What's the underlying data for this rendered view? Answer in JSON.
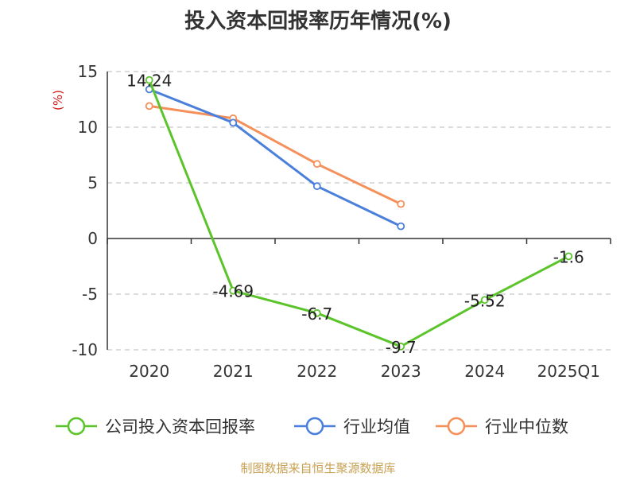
{
  "chart_data": {
    "type": "line",
    "title": "投入资本回报率历年情况(%)",
    "ylabel": "(%)",
    "categories": [
      "2020",
      "2021",
      "2022",
      "2023",
      "2024",
      "2025Q1"
    ],
    "ylim": [
      -10,
      15
    ],
    "yticks": [
      "15",
      "10",
      "5",
      "0",
      "-5",
      "-10"
    ],
    "grid": true,
    "legend_position": "bottom",
    "series": [
      {
        "name": "公司投入资本回报率",
        "color": "#5cc42b",
        "values": [
          14.24,
          -4.69,
          -6.7,
          -9.7,
          -5.52,
          -1.6
        ],
        "labels": [
          "14.24",
          "-4.69",
          "-6.7",
          "-9.7",
          "-5.52",
          "-1.6"
        ]
      },
      {
        "name": "行业均值",
        "color": "#4a7fdc",
        "values": [
          13.4,
          10.4,
          4.7,
          1.1,
          null,
          null
        ]
      },
      {
        "name": "行业中位数",
        "color": "#f5905a",
        "values": [
          11.9,
          10.8,
          6.7,
          3.1,
          null,
          null
        ]
      }
    ]
  },
  "footer": {
    "source": "制图数据来自恒生聚源数据库"
  }
}
